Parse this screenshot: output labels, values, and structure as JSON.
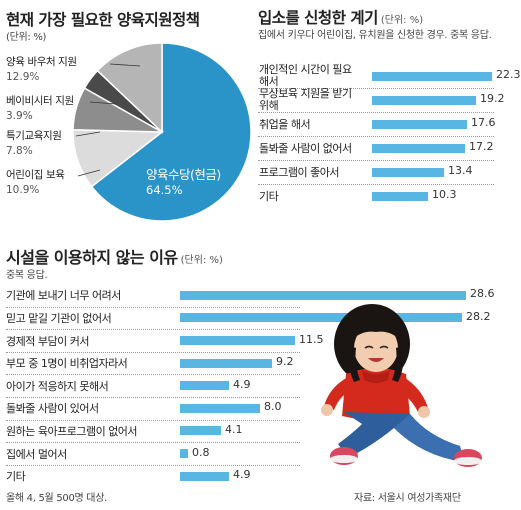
{
  "colors": {
    "accent": "#2a93c8",
    "bar": "#59b6e3",
    "grey_light": "#dcdcdc",
    "grey_mid": "#8d8d8d",
    "grey_dark": "#4a4a4a",
    "grey_lightmid": "#b5b5b5"
  },
  "footer": {
    "note": "올해 4, 5월 500명 대상.",
    "source": "자료: 서울시 여성가족재단"
  },
  "chart_data": [
    {
      "type": "pie",
      "title": "현재 가장 필요한 양육지원정책",
      "unit": "(단위: %)",
      "slices": [
        {
          "label": "양육수당(현금)",
          "value": 64.5,
          "value_text": "64.5%",
          "color": "#2a93c8"
        },
        {
          "label": "어린이집 보육",
          "value": 10.9,
          "value_text": "10.9%",
          "color": "#dcdcdc"
        },
        {
          "label": "특기교육지원",
          "value": 7.8,
          "value_text": "7.8%",
          "color": "#8d8d8d"
        },
        {
          "label": "베이비시터 지원",
          "value": 3.9,
          "value_text": "3.9%",
          "color": "#4a4a4a"
        },
        {
          "label": "양육 바우처 지원",
          "value": 12.9,
          "value_text": "12.9%",
          "color": "#b5b5b5"
        }
      ]
    },
    {
      "type": "bar",
      "orientation": "horizontal",
      "title": "입소를 신청한 계기",
      "unit": "(단위: %)",
      "note": "집에서 키우다 어린이집, 유치원을 신청한 경우. 중복 응답.",
      "categories": [
        "개인적인 시간이 필요해서",
        "무상보육 지원을 받기 위해",
        "취업을 해서",
        "돌봐줄 사람이 없어서",
        "프로그램이 좋아서",
        "기타"
      ],
      "values": [
        22.3,
        19.2,
        17.6,
        17.2,
        13.4,
        10.3
      ],
      "xlim": [
        0,
        23
      ]
    },
    {
      "type": "bar",
      "orientation": "horizontal",
      "title": "시설을 이용하지 않는 이유",
      "unit": "(단위: %)",
      "note": "중복 응답.",
      "categories": [
        "기관에 보내기 너무 어려서",
        "믿고 맡길 기관이 없어서",
        "경제적 부담이 커서",
        "부모 중 1명이 비취업자라서",
        "아이가 적응하지 못해서",
        "돌봐줄 사람이 있어서",
        "원하는 육아프로그램이 없어서",
        "집에서 멀어서",
        "기타"
      ],
      "values": [
        28.6,
        28.2,
        11.5,
        9.2,
        4.9,
        8.0,
        4.1,
        0.8,
        4.9
      ],
      "xlim": [
        0,
        29.5
      ]
    }
  ]
}
